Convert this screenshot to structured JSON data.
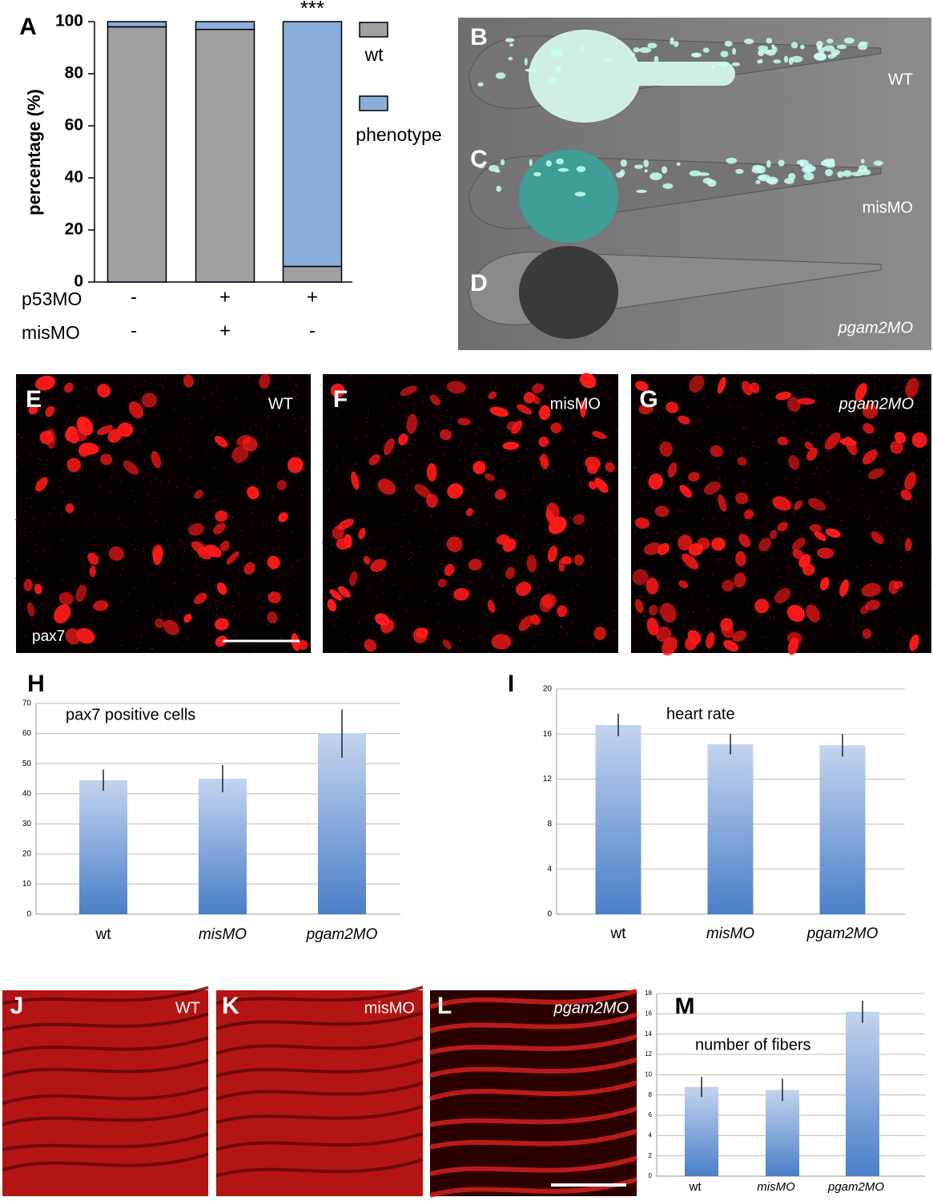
{
  "chart_data": [
    {
      "type": "bar",
      "stacked": true,
      "label": "A",
      "ylabel": "percentage (%)",
      "ylim": [
        0,
        100
      ],
      "yticks": [
        0,
        20,
        40,
        60,
        80,
        100
      ],
      "conditions": [
        {
          "name": "p53MO",
          "values": [
            "-",
            "+",
            "+"
          ]
        },
        {
          "name": "misMO",
          "values": [
            "-",
            "+",
            "-"
          ]
        }
      ],
      "series": [
        {
          "name": "wt",
          "color": "#a09fa4",
          "values": [
            98,
            97,
            6
          ]
        },
        {
          "name": "phenotype",
          "color": "#8badd9",
          "values": [
            2,
            3,
            94
          ]
        }
      ],
      "annotation": "***"
    },
    {
      "type": "bar",
      "label": "H",
      "title": "pax7 positive cells",
      "categories": [
        "wt",
        "misMO",
        "pgam2MO"
      ],
      "values": [
        44.5,
        45,
        60
      ],
      "errors": [
        3.5,
        4.5,
        8
      ],
      "ylim": [
        0,
        70
      ],
      "yticks": [
        0,
        10,
        20,
        30,
        40,
        50,
        60,
        70
      ],
      "grid": true
    },
    {
      "type": "bar",
      "label": "I",
      "title": "heart rate",
      "categories": [
        "wt",
        "misMO",
        "pgam2MO"
      ],
      "values": [
        16.8,
        15.1,
        15
      ],
      "errors": [
        1,
        0.9,
        1
      ],
      "ylim": [
        0,
        20
      ],
      "yticks": [
        0,
        4,
        8,
        12,
        16,
        20
      ],
      "grid": true
    },
    {
      "type": "bar",
      "label": "M",
      "title": "number of fibers",
      "categories": [
        "wt",
        "misMO",
        "pgam2MO"
      ],
      "values": [
        8.8,
        8.5,
        16.2
      ],
      "errors": [
        1,
        1.1,
        1.1
      ],
      "ylim": [
        0,
        18
      ],
      "yticks": [
        0,
        2,
        4,
        6,
        8,
        10,
        12,
        14,
        16,
        18
      ],
      "grid": true
    }
  ],
  "images": {
    "fish": [
      {
        "label": "B",
        "caption": "WT"
      },
      {
        "label": "C",
        "caption": "misMO"
      },
      {
        "label": "D",
        "caption": "pgam2MO"
      }
    ],
    "pax7": [
      {
        "label": "E",
        "caption": "WT"
      },
      {
        "label": "F",
        "caption": "misMO"
      },
      {
        "label": "G",
        "caption": "pgam2MO"
      }
    ],
    "pax7_stain": "pax7",
    "fibers": [
      {
        "label": "J",
        "caption": "WT"
      },
      {
        "label": "K",
        "caption": "misMO"
      },
      {
        "label": "L",
        "caption": "pgam2MO"
      }
    ]
  }
}
